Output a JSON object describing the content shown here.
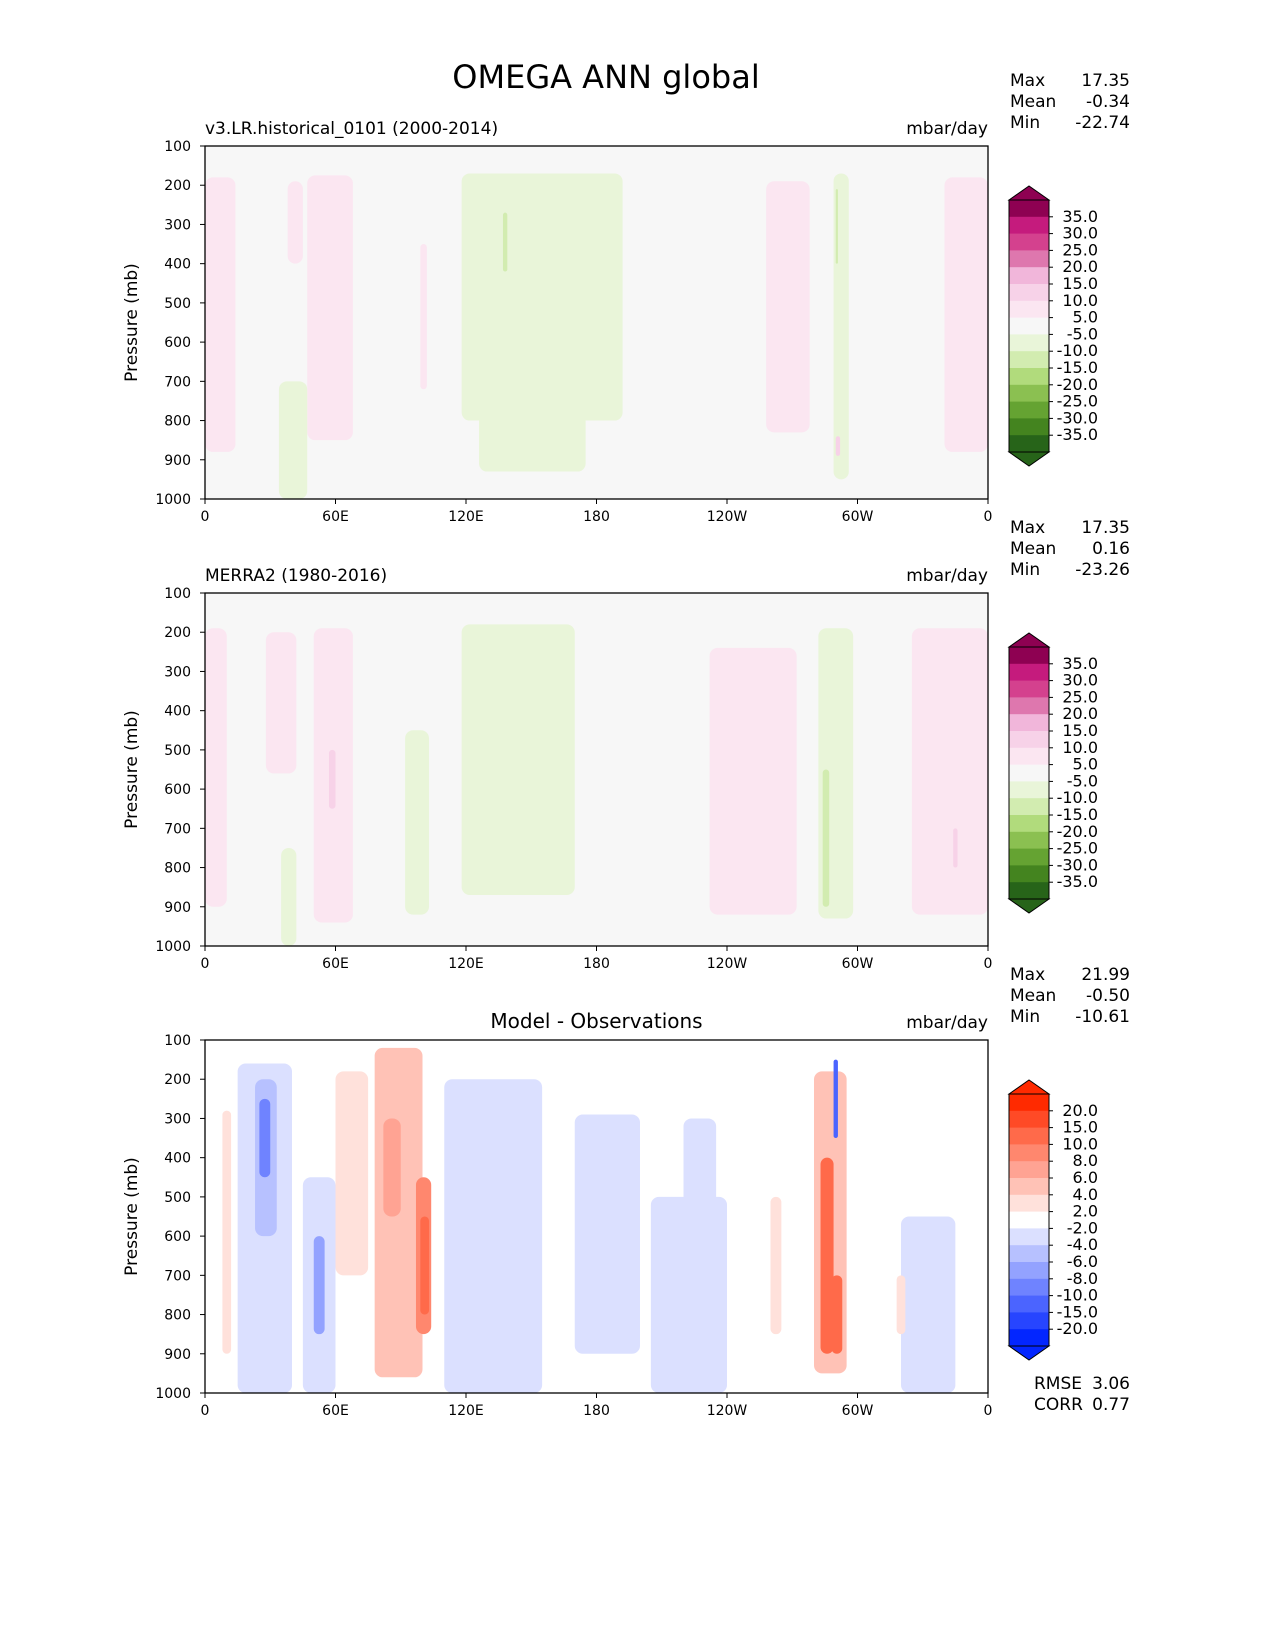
{
  "chart_data": {
    "type": "heatmap",
    "title": "OMEGA ANN global",
    "xticks": [
      {
        "lon": 0,
        "label": "0"
      },
      {
        "lon": 60,
        "label": "60E"
      },
      {
        "lon": 120,
        "label": "120E"
      },
      {
        "lon": 180,
        "label": "180"
      },
      {
        "lon": 240,
        "label": "120W"
      },
      {
        "lon": 300,
        "label": "60W"
      },
      {
        "lon": 360,
        "label": "0"
      }
    ],
    "yticks": [
      100,
      200,
      300,
      400,
      500,
      600,
      700,
      800,
      900,
      1000
    ],
    "xlim": [
      0,
      360
    ],
    "ylim": [
      100,
      1000
    ],
    "ylabel": "Pressure (mb)",
    "panels": [
      {
        "left_title": "v3.LR.historical_0101 (2000-2014)",
        "center_title": "",
        "units": "mbar/day",
        "stats": [
          {
            "label": "Max",
            "value": "17.35"
          },
          {
            "label": "Mean",
            "value": "-0.34"
          },
          {
            "label": "Min",
            "value": "-22.74"
          }
        ],
        "levels": [
          -35,
          -30,
          -25,
          -20,
          -15,
          -10,
          -5,
          5,
          10,
          15,
          20,
          25,
          30,
          35
        ],
        "level_labels": [
          "35.0",
          "30.0",
          "25.0",
          "20.0",
          "15.0",
          "10.0",
          "5.0",
          "-5.0",
          "-10.0",
          "-15.0",
          "-20.0",
          "-25.0",
          "-30.0",
          "-35.0"
        ],
        "colors": [
          "#276419",
          "#44841f",
          "#65a332",
          "#8bc051",
          "#b1db7c",
          "#d2ecb0",
          "#e9f5d9",
          "#f7f7f7",
          "#fbe6f1",
          "#f7d2e8",
          "#f1b6da",
          "#de77ae",
          "#d4418e",
          "#c51b7d",
          "#8e0152"
        ],
        "regions": [
          {
            "lon": [
              0,
              14
            ],
            "p": [
              180,
              880
            ],
            "v": 7
          },
          {
            "lon": [
              38,
              45
            ],
            "p": [
              190,
              400
            ],
            "v": 7
          },
          {
            "lon": [
              47,
              68
            ],
            "p": [
              175,
              850
            ],
            "v": 7
          },
          {
            "lon": [
              99,
              102
            ],
            "p": [
              350,
              720
            ],
            "v": 7
          },
          {
            "lon": [
              118,
              192
            ],
            "p": [
              170,
              800
            ],
            "v": -7
          },
          {
            "lon": [
              126,
              175
            ],
            "p": [
              600,
              930
            ],
            "v": -7
          },
          {
            "lon": [
              137,
              139
            ],
            "p": [
              270,
              420
            ],
            "v": -12
          },
          {
            "lon": [
              34,
              47
            ],
            "p": [
              700,
              1000
            ],
            "v": -7
          },
          {
            "lon": [
              258,
              278
            ],
            "p": [
              190,
              830
            ],
            "v": 7
          },
          {
            "lon": [
              289,
              296
            ],
            "p": [
              170,
              950
            ],
            "v": -7
          },
          {
            "lon": [
              290,
              291
            ],
            "p": [
              210,
              400
            ],
            "v": -12
          },
          {
            "lon": [
              290,
              292
            ],
            "p": [
              840,
              890
            ],
            "v": 12
          },
          {
            "lon": [
              340,
              360
            ],
            "p": [
              180,
              880
            ],
            "v": 7
          }
        ]
      },
      {
        "left_title": "MERRA2 (1980-2016)",
        "center_title": "",
        "units": "mbar/day",
        "stats": [
          {
            "label": "Max",
            "value": "17.35"
          },
          {
            "label": "Mean",
            "value": "0.16"
          },
          {
            "label": "Min",
            "value": "-23.26"
          }
        ],
        "levels": [
          -35,
          -30,
          -25,
          -20,
          -15,
          -10,
          -5,
          5,
          10,
          15,
          20,
          25,
          30,
          35
        ],
        "level_labels": [
          "35.0",
          "30.0",
          "25.0",
          "20.0",
          "15.0",
          "10.0",
          "5.0",
          "-5.0",
          "-10.0",
          "-15.0",
          "-20.0",
          "-25.0",
          "-30.0",
          "-35.0"
        ],
        "colors": [
          "#276419",
          "#44841f",
          "#65a332",
          "#8bc051",
          "#b1db7c",
          "#d2ecb0",
          "#e9f5d9",
          "#f7f7f7",
          "#fbe6f1",
          "#f7d2e8",
          "#f1b6da",
          "#de77ae",
          "#d4418e",
          "#c51b7d",
          "#8e0152"
        ],
        "regions": [
          {
            "lon": [
              0,
              10
            ],
            "p": [
              190,
              900
            ],
            "v": 7
          },
          {
            "lon": [
              28,
              42
            ],
            "p": [
              200,
              560
            ],
            "v": 7
          },
          {
            "lon": [
              50,
              68
            ],
            "p": [
              190,
              940
            ],
            "v": 7
          },
          {
            "lon": [
              57,
              60
            ],
            "p": [
              500,
              650
            ],
            "v": 12
          },
          {
            "lon": [
              92,
              103
            ],
            "p": [
              450,
              920
            ],
            "v": -7
          },
          {
            "lon": [
              118,
              170
            ],
            "p": [
              180,
              870
            ],
            "v": -7
          },
          {
            "lon": [
              35,
              42
            ],
            "p": [
              750,
              1000
            ],
            "v": -7
          },
          {
            "lon": [
              232,
              272
            ],
            "p": [
              240,
              920
            ],
            "v": 7
          },
          {
            "lon": [
              282,
              298
            ],
            "p": [
              190,
              930
            ],
            "v": -7
          },
          {
            "lon": [
              284,
              287
            ],
            "p": [
              550,
              900
            ],
            "v": -15
          },
          {
            "lon": [
              325,
              360
            ],
            "p": [
              190,
              920
            ],
            "v": 7
          },
          {
            "lon": [
              344,
              346
            ],
            "p": [
              700,
              800
            ],
            "v": 12
          }
        ]
      },
      {
        "left_title": "",
        "center_title": "Model - Observations",
        "units": "mbar/day",
        "stats": [
          {
            "label": "Max",
            "value": "21.99"
          },
          {
            "label": "Mean",
            "value": "-0.50"
          },
          {
            "label": "Min",
            "value": "-10.61"
          }
        ],
        "levels": [
          -20,
          -15,
          -10,
          -8,
          -6,
          -4,
          -2,
          2,
          4,
          6,
          8,
          10,
          15,
          20
        ],
        "level_labels": [
          "20.0",
          "15.0",
          "10.0",
          "8.0",
          "6.0",
          "4.0",
          "2.0",
          "-2.0",
          "-4.0",
          "-6.0",
          "-8.0",
          "-10.0",
          "-15.0",
          "-20.0"
        ],
        "colors": [
          "#0326ff",
          "#2745ff",
          "#4b64ff",
          "#6f83ff",
          "#93a2ff",
          "#b7c1ff",
          "#dbe0ff",
          "#ffffff",
          "#ffe1db",
          "#ffc2b6",
          "#ffa393",
          "#ff876e",
          "#ff6a4a",
          "#ff4a26",
          "#ff2a00"
        ],
        "regions": [
          {
            "lon": [
              15,
              40
            ],
            "p": [
              160,
              1000
            ],
            "v": -3
          },
          {
            "lon": [
              23,
              33
            ],
            "p": [
              200,
              600
            ],
            "v": -5
          },
          {
            "lon": [
              25,
              30
            ],
            "p": [
              250,
              450
            ],
            "v": -9
          },
          {
            "lon": [
              8,
              12
            ],
            "p": [
              280,
              900
            ],
            "v": 3
          },
          {
            "lon": [
              45,
              60
            ],
            "p": [
              450,
              1000
            ],
            "v": -3
          },
          {
            "lon": [
              50,
              55
            ],
            "p": [
              600,
              850
            ],
            "v": -7
          },
          {
            "lon": [
              60,
              75
            ],
            "p": [
              180,
              700
            ],
            "v": 3
          },
          {
            "lon": [
              78,
              100
            ],
            "p": [
              120,
              960
            ],
            "v": 5
          },
          {
            "lon": [
              82,
              90
            ],
            "p": [
              300,
              550
            ],
            "v": 7
          },
          {
            "lon": [
              97,
              104
            ],
            "p": [
              450,
              850
            ],
            "v": 9
          },
          {
            "lon": [
              99,
              103
            ],
            "p": [
              550,
              800
            ],
            "v": 12
          },
          {
            "lon": [
              110,
              155
            ],
            "p": [
              200,
              1000
            ],
            "v": -3
          },
          {
            "lon": [
              170,
              200
            ],
            "p": [
              290,
              900
            ],
            "v": -3
          },
          {
            "lon": [
              205,
              240
            ],
            "p": [
              500,
              1000
            ],
            "v": -3
          },
          {
            "lon": [
              220,
              235
            ],
            "p": [
              300,
              700
            ],
            "v": -3
          },
          {
            "lon": [
              260,
              265
            ],
            "p": [
              500,
              850
            ],
            "v": 3
          },
          {
            "lon": [
              280,
              295
            ],
            "p": [
              180,
              950
            ],
            "v": 4
          },
          {
            "lon": [
              283,
              289
            ],
            "p": [
              400,
              900
            ],
            "v": 10
          },
          {
            "lon": [
              288,
              293
            ],
            "p": [
              700,
              900
            ],
            "v": 12
          },
          {
            "lon": [
              289,
              291
            ],
            "p": [
              150,
              350
            ],
            "v": -12
          },
          {
            "lon": [
              320,
              345
            ],
            "p": [
              550,
              1000
            ],
            "v": -3
          },
          {
            "lon": [
              318,
              322
            ],
            "p": [
              700,
              850
            ],
            "v": 3
          }
        ],
        "extra_stats": [
          {
            "label": "RMSE",
            "value": "3.06"
          },
          {
            "label": "CORR",
            "value": "0.77"
          }
        ]
      }
    ]
  }
}
